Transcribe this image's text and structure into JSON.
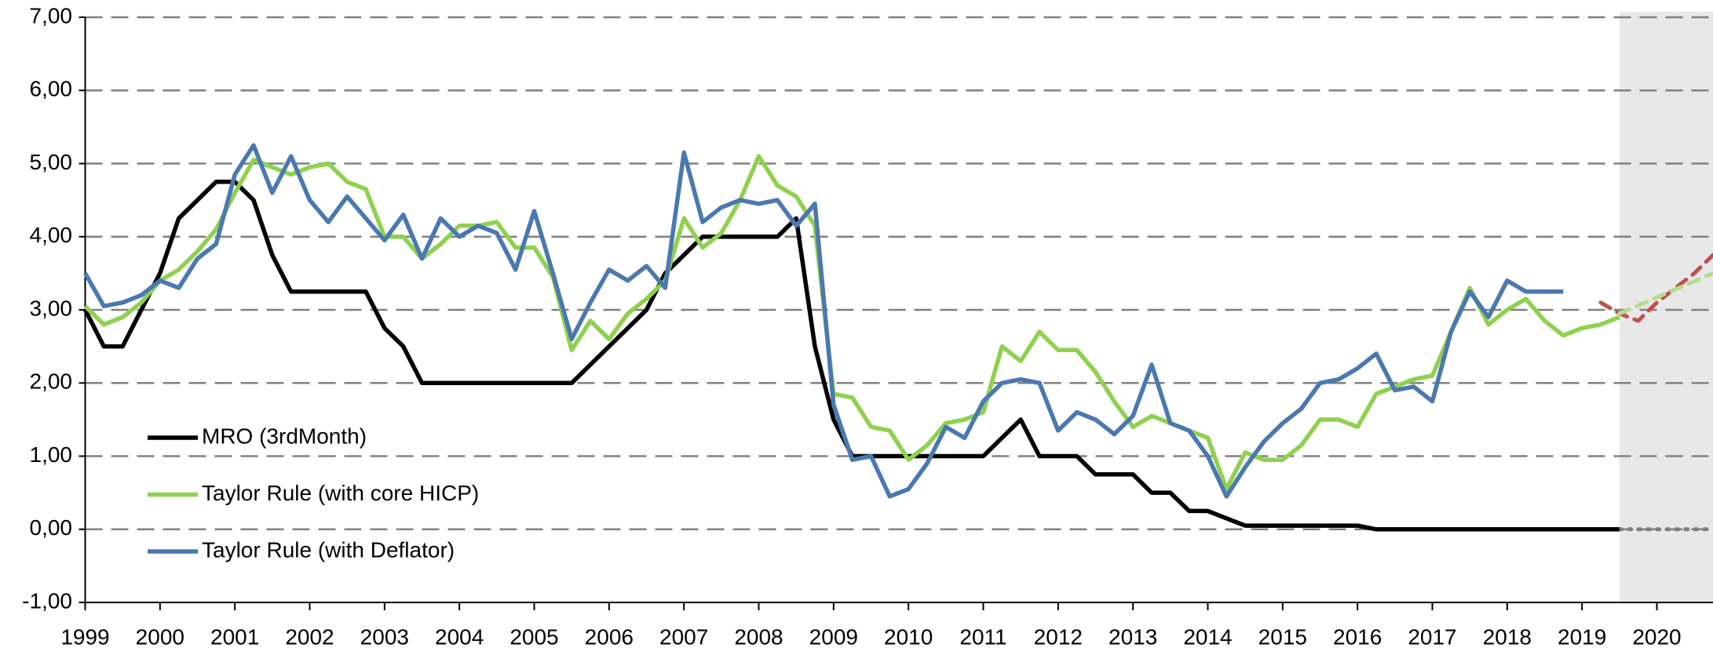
{
  "chart_data": {
    "type": "line",
    "x": [
      1999,
      1999.25,
      1999.5,
      1999.75,
      2000,
      2000.25,
      2000.5,
      2000.75,
      2001,
      2001.25,
      2001.5,
      2001.75,
      2002,
      2002.25,
      2002.5,
      2002.75,
      2003,
      2003.25,
      2003.5,
      2003.75,
      2004,
      2004.25,
      2004.5,
      2004.75,
      2005,
      2005.25,
      2005.5,
      2005.75,
      2006,
      2006.25,
      2006.5,
      2006.75,
      2007,
      2007.25,
      2007.5,
      2007.75,
      2008,
      2008.25,
      2008.5,
      2008.75,
      2009,
      2009.25,
      2009.5,
      2009.75,
      2010,
      2010.25,
      2010.5,
      2010.75,
      2011,
      2011.25,
      2011.5,
      2011.75,
      2012,
      2012.25,
      2012.5,
      2012.75,
      2013,
      2013.25,
      2013.5,
      2013.75,
      2014,
      2014.25,
      2014.5,
      2014.75,
      2015,
      2015.25,
      2015.5,
      2015.75,
      2016,
      2016.25,
      2016.5,
      2016.75,
      2017,
      2017.25,
      2017.5,
      2017.75,
      2018,
      2018.25,
      2018.5,
      2018.75,
      2019,
      2019.25,
      2019.5
    ],
    "series": [
      {
        "name": "MRO (3rdMonth)",
        "color": "#000000",
        "values": [
          3.0,
          2.5,
          2.5,
          3.0,
          3.5,
          4.25,
          4.5,
          4.75,
          4.75,
          4.5,
          3.75,
          3.25,
          3.25,
          3.25,
          3.25,
          3.25,
          2.75,
          2.5,
          2.0,
          2.0,
          2.0,
          2.0,
          2.0,
          2.0,
          2.0,
          2.0,
          2.0,
          2.25,
          2.5,
          2.75,
          3.0,
          3.5,
          3.75,
          4.0,
          4.0,
          4.0,
          4.0,
          4.0,
          4.25,
          2.5,
          1.5,
          1.0,
          1.0,
          1.0,
          1.0,
          1.0,
          1.0,
          1.0,
          1.0,
          1.25,
          1.5,
          1.0,
          1.0,
          1.0,
          0.75,
          0.75,
          0.75,
          0.5,
          0.5,
          0.25,
          0.25,
          0.15,
          0.05,
          0.05,
          0.05,
          0.05,
          0.05,
          0.05,
          0.05,
          0,
          0,
          0,
          0,
          0,
          0,
          0,
          0,
          0,
          0,
          0,
          0,
          0,
          0
        ]
      },
      {
        "name": "Taylor Rule (with core HICP)",
        "color": "#8fd14f",
        "values": [
          3.05,
          2.8,
          2.9,
          3.1,
          3.4,
          3.55,
          3.8,
          4.1,
          4.6,
          5.05,
          4.95,
          4.85,
          4.95,
          5.0,
          4.75,
          4.65,
          4.0,
          4.0,
          3.7,
          3.9,
          4.15,
          4.15,
          4.2,
          3.85,
          3.85,
          3.45,
          2.45,
          2.85,
          2.6,
          2.95,
          3.15,
          3.4,
          4.25,
          3.85,
          4.05,
          4.5,
          5.1,
          4.7,
          4.55,
          4.15,
          1.85,
          1.8,
          1.4,
          1.35,
          0.95,
          1.15,
          1.45,
          1.5,
          1.6,
          2.5,
          2.3,
          2.7,
          2.45,
          2.45,
          2.15,
          1.75,
          1.4,
          1.55,
          1.45,
          1.35,
          1.25,
          0.55,
          1.05,
          0.95,
          0.95,
          1.15,
          1.5,
          1.5,
          1.4,
          1.85,
          1.95,
          2.05,
          2.1,
          2.7,
          3.3,
          2.8,
          3.0,
          3.15,
          2.85,
          2.65,
          2.75,
          2.8,
          2.9
        ]
      },
      {
        "name": "Taylor Rule (with Deflator)",
        "color": "#4a78b0",
        "values": [
          3.5,
          3.05,
          3.1,
          3.2,
          3.4,
          3.3,
          3.7,
          3.9,
          4.85,
          5.25,
          4.6,
          5.1,
          4.5,
          4.2,
          4.55,
          4.25,
          3.95,
          4.3,
          3.7,
          4.25,
          4.0,
          4.15,
          4.05,
          3.55,
          4.35,
          3.5,
          2.6,
          3.1,
          3.55,
          3.4,
          3.6,
          3.3,
          5.15,
          4.2,
          4.4,
          4.5,
          4.45,
          4.5,
          4.15,
          4.45,
          1.7,
          0.95,
          1.0,
          0.45,
          0.55,
          0.9,
          1.4,
          1.25,
          1.75,
          2.0,
          2.05,
          2.0,
          1.35,
          1.6,
          1.5,
          1.3,
          1.55,
          2.25,
          1.45,
          1.35,
          1.0,
          0.45,
          0.85,
          1.2,
          1.45,
          1.65,
          2.0,
          2.05,
          2.2,
          2.4,
          1.9,
          1.95,
          1.75,
          2.7,
          3.25,
          2.9,
          3.4,
          3.25,
          3.25,
          3.25,
          null,
          null,
          null
        ]
      }
    ],
    "forecasts": [
      {
        "color": "#c0504d",
        "dash": "14,10",
        "x": [
          2019.25,
          2019.5,
          2019.75,
          2020,
          2020.25,
          2020.5,
          2020.75
        ],
        "values": [
          3.1,
          2.95,
          2.85,
          3.1,
          3.3,
          3.5,
          3.75
        ]
      },
      {
        "color": "#b5dc8e",
        "dash": "14,10",
        "x": [
          2019.5,
          2020.75
        ],
        "values": [
          2.95,
          3.5
        ]
      },
      {
        "color": "#808080",
        "dash": "3,9",
        "x": [
          2019.5,
          2020.75
        ],
        "values": [
          0,
          0
        ]
      }
    ],
    "forecast_start": 2019.5,
    "xlim": [
      1999,
      2020.75
    ],
    "xticks": [
      1999,
      2000,
      2001,
      2002,
      2003,
      2004,
      2005,
      2006,
      2007,
      2008,
      2009,
      2010,
      2011,
      2012,
      2013,
      2014,
      2015,
      2016,
      2017,
      2018,
      2019,
      2020
    ],
    "ylim": [
      -1,
      7
    ],
    "yticks": [
      {
        "value": -1,
        "label": "-1,00"
      },
      {
        "value": 0,
        "label": "0,00"
      },
      {
        "value": 1,
        "label": "1,00"
      },
      {
        "value": 2,
        "label": "2,00"
      },
      {
        "value": 3,
        "label": "3,00"
      },
      {
        "value": 4,
        "label": "4,00"
      },
      {
        "value": 5,
        "label": "5,00"
      },
      {
        "value": 6,
        "label": "6,00"
      },
      {
        "value": 7,
        "label": "7,00"
      }
    ],
    "grid": true
  }
}
